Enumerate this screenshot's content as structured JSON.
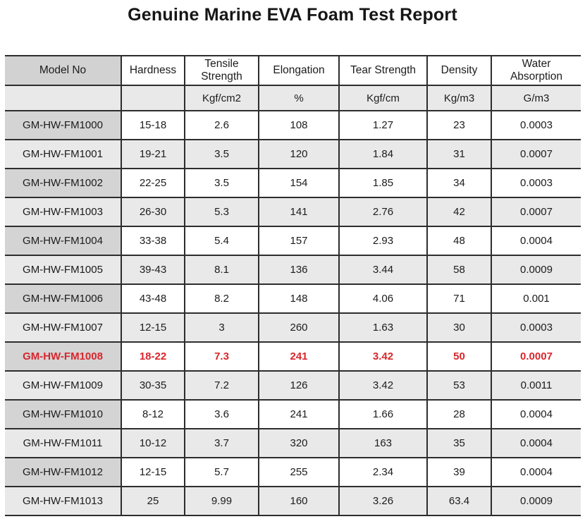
{
  "title": "Genuine Marine EVA Foam Test Report",
  "table": {
    "columns": [
      {
        "label": "Model No",
        "unit": ""
      },
      {
        "label": "Hardness",
        "unit": ""
      },
      {
        "label": "Tensile Strength",
        "unit": "Kgf/cm2"
      },
      {
        "label": "Elongation",
        "unit": "%"
      },
      {
        "label": "Tear Strength",
        "unit": "Kgf/cm"
      },
      {
        "label": "Density",
        "unit": "Kg/m3"
      },
      {
        "label": "Water Absorption",
        "unit": "G/m3"
      }
    ],
    "rows": [
      {
        "model": "GM-HW-FM1000",
        "values": [
          "15-18",
          "2.6",
          "108",
          "1.27",
          "23",
          "0.0003"
        ],
        "highlighted": false
      },
      {
        "model": "GM-HW-FM1001",
        "values": [
          "19-21",
          "3.5",
          "120",
          "1.84",
          "31",
          "0.0007"
        ],
        "highlighted": false
      },
      {
        "model": "GM-HW-FM1002",
        "values": [
          "22-25",
          "3.5",
          "154",
          "1.85",
          "34",
          "0.0003"
        ],
        "highlighted": false
      },
      {
        "model": "GM-HW-FM1003",
        "values": [
          "26-30",
          "5.3",
          "141",
          "2.76",
          "42",
          "0.0007"
        ],
        "highlighted": false
      },
      {
        "model": "GM-HW-FM1004",
        "values": [
          "33-38",
          "5.4",
          "157",
          "2.93",
          "48",
          "0.0004"
        ],
        "highlighted": false
      },
      {
        "model": "GM-HW-FM1005",
        "values": [
          "39-43",
          "8.1",
          "136",
          "3.44",
          "58",
          "0.0009"
        ],
        "highlighted": false
      },
      {
        "model": "GM-HW-FM1006",
        "values": [
          "43-48",
          "8.2",
          "148",
          "4.06",
          "71",
          "0.001"
        ],
        "highlighted": false
      },
      {
        "model": "GM-HW-FM1007",
        "values": [
          "12-15",
          "3",
          "260",
          "1.63",
          "30",
          "0.0003"
        ],
        "highlighted": false
      },
      {
        "model": "GM-HW-FM1008",
        "values": [
          "18-22",
          "7.3",
          "241",
          "3.42",
          "50",
          "0.0007"
        ],
        "highlighted": true
      },
      {
        "model": "GM-HW-FM1009",
        "values": [
          "30-35",
          "7.2",
          "126",
          "3.42",
          "53",
          "0.0011"
        ],
        "highlighted": false
      },
      {
        "model": "GM-HW-FM1010",
        "values": [
          "8-12",
          "3.6",
          "241",
          "1.66",
          "28",
          "0.0004"
        ],
        "highlighted": false
      },
      {
        "model": "GM-HW-FM1011",
        "values": [
          "10-12",
          "3.7",
          "320",
          "163",
          "35",
          "0.0004"
        ],
        "highlighted": false
      },
      {
        "model": "GM-HW-FM1012",
        "values": [
          "12-15",
          "5.7",
          "255",
          "2.34",
          "39",
          "0.0004"
        ],
        "highlighted": false
      },
      {
        "model": "GM-HW-FM1013",
        "values": [
          "25",
          "9.99",
          "160",
          "3.26",
          "63.4",
          "0.0009"
        ],
        "highlighted": false
      }
    ]
  },
  "colors": {
    "highlight_red": "#d9262c",
    "header_cell_gray": "#d2d2d2",
    "model_cell_gray": "#d4d4d4",
    "alt_row_gray": "#e9e9e9",
    "border_dark": "#2d2d2d"
  }
}
